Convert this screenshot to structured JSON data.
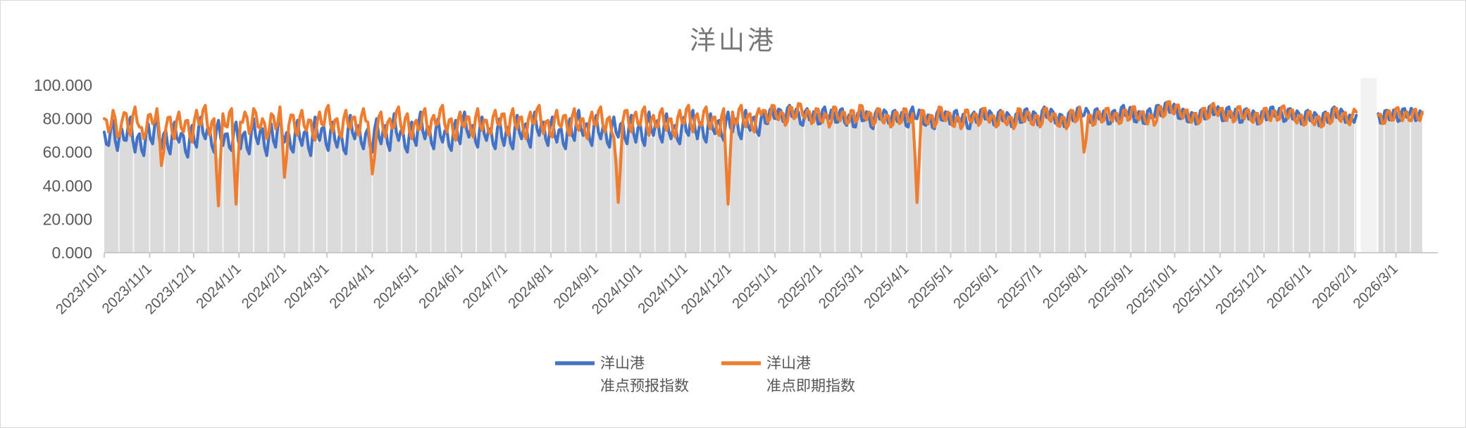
{
  "chart_data": {
    "type": "line",
    "title": "洋山港",
    "legend": [
      {
        "line1": "洋山港",
        "line2": "准点预报指数",
        "color": "#4472C4"
      },
      {
        "line1": "洋山港",
        "line2": "准点即期指数",
        "color": "#ED7D31"
      }
    ],
    "x_start_date": "2023/10/1",
    "x_end_date": "2026/3/20",
    "x_total_days": 902,
    "sample_day_step": 3,
    "x_tick_labels": [
      "2023/10/1",
      "2023/11/1",
      "2023/12/1",
      "2024/1/1",
      "2024/2/1",
      "2024/3/1",
      "2024/4/1",
      "2024/5/1",
      "2024/6/1",
      "2024/7/1",
      "2024/8/1",
      "2024/9/1",
      "2024/10/1",
      "2024/11/1",
      "2024/12/1",
      "2025/1/1",
      "2025/2/1",
      "2025/3/1",
      "2025/4/1",
      "2025/5/1",
      "2025/6/1",
      "2025/7/1",
      "2025/8/1",
      "2025/9/1",
      "2025/10/1",
      "2025/11/1",
      "2025/12/1",
      "2026/1/1",
      "2026/2/1",
      "2026/3/1"
    ],
    "x_tick_days": [
      0,
      31,
      61,
      92,
      123,
      152,
      183,
      213,
      244,
      274,
      305,
      336,
      366,
      397,
      427,
      458,
      489,
      517,
      548,
      578,
      609,
      639,
      670,
      701,
      731,
      762,
      792,
      823,
      854,
      882
    ],
    "ylim": [
      0,
      100
    ],
    "y_tick_values": [
      0,
      20,
      40,
      60,
      80,
      100
    ],
    "y_ticks": [
      "0.000",
      "20.000",
      "40.000",
      "60.000",
      "80.000",
      "100.000"
    ],
    "grid": "vertical-white-stripes-on-gray-area",
    "legend_position": "bottom-center",
    "data_gap": {
      "start_day": 858,
      "end_day": 869,
      "note": "blank band, no data (around 2026/2/5-2/15)"
    },
    "midpoint_jitter": 3.2,
    "area_fill": {
      "color": "#DBDBDB",
      "min_top": 56,
      "description": "gray fill from 0 up to lower envelope of the two lines"
    },
    "colors": {
      "title": "#767676",
      "axis_labels": "#595959",
      "axis_line": "#BFBFBF",
      "tick": "#BFBFBF",
      "stripe_white": "#F5F5F5",
      "gap_column": "#F2F2F2",
      "legend_text": "#555555",
      "series_blue": "#4472C4",
      "series_orange": "#ED7D31"
    },
    "series": [
      {
        "name": "洋山港 准点预报指数",
        "color": "#4472C4",
        "values": [
          72,
          64,
          79,
          61,
          74,
          67,
          81,
          60,
          71,
          58,
          77,
          65,
          82,
          62,
          73,
          59,
          78,
          66,
          70,
          57,
          76,
          63,
          81,
          68,
          74,
          60,
          79,
          64,
          71,
          61,
          78,
          62,
          72,
          59,
          80,
          65,
          74,
          58,
          77,
          63,
          82,
          66,
          71,
          60,
          79,
          64,
          73,
          58,
          81,
          67,
          75,
          61,
          78,
          63,
          70,
          59,
          82,
          68,
          76,
          62,
          74,
          60,
          80,
          65,
          76,
          61,
          83,
          67,
          72,
          60,
          78,
          64,
          84,
          68,
          75,
          62,
          80,
          66,
          73,
          61,
          79,
          65,
          84,
          69,
          76,
          63,
          81,
          67,
          74,
          62,
          80,
          64,
          75,
          62,
          82,
          68,
          77,
          63,
          84,
          70,
          78,
          64,
          81,
          66,
          74,
          62,
          80,
          67,
          85,
          70,
          77,
          64,
          82,
          68,
          75,
          63,
          81,
          69,
          78,
          65,
          82,
          66,
          77,
          64,
          84,
          70,
          79,
          66,
          83,
          68,
          76,
          65,
          81,
          70,
          85,
          68,
          78,
          66,
          83,
          71,
          79,
          67,
          84,
          72,
          80,
          68,
          85,
          73,
          81,
          70,
          84,
          77,
          87,
          80,
          85,
          78,
          88,
          81,
          84,
          76,
          86,
          79,
          83,
          77,
          87,
          80,
          84,
          78,
          86,
          76,
          82,
          75,
          85,
          79,
          83,
          74,
          86,
          80,
          84,
          77,
          85,
          78,
          83,
          75,
          87,
          80,
          84,
          76,
          82,
          74,
          86,
          79,
          83,
          77,
          85,
          78,
          81,
          74,
          84,
          78,
          86,
          80,
          83,
          76,
          85,
          79,
          82,
          75,
          84,
          78,
          86,
          79,
          83,
          76,
          87,
          81,
          84,
          77,
          82,
          75,
          85,
          79,
          87,
          82,
          84,
          78,
          86,
          80,
          83,
          77,
          85,
          79,
          88,
          82,
          85,
          78,
          84,
          77,
          86,
          81,
          88,
          82,
          90,
          84,
          87,
          80,
          85,
          78,
          83,
          77,
          86,
          80,
          88,
          83,
          85,
          79,
          87,
          81,
          84,
          78,
          86,
          80,
          83,
          77,
          85,
          80,
          87,
          82,
          84,
          79,
          86,
          80,
          83,
          77,
          85,
          79,
          82,
          76,
          84,
          78,
          87,
          81,
          84,
          78,
          80,
          82,
          null,
          null,
          null,
          null,
          83,
          78,
          85,
          80,
          84,
          79,
          86,
          82,
          84,
          80,
          83
        ]
      },
      {
        "name": "洋山港 准点即期指数",
        "color": "#ED7D31",
        "values": [
          80,
          72,
          85,
          69,
          78,
          83,
          70,
          87,
          75,
          68,
          82,
          77,
          86,
          52,
          74,
          81,
          68,
          84,
          72,
          79,
          66,
          85,
          76,
          88,
          70,
          80,
          28,
          83,
          75,
          86,
          29,
          78,
          84,
          71,
          86,
          75,
          80,
          68,
          83,
          74,
          87,
          45,
          76,
          82,
          70,
          85,
          73,
          79,
          67,
          84,
          76,
          88,
          72,
          80,
          69,
          85,
          74,
          81,
          70,
          86,
          78,
          47,
          72,
          84,
          69,
          80,
          75,
          87,
          71,
          83,
          68,
          79,
          74,
          86,
          70,
          82,
          77,
          88,
          72,
          80,
          67,
          84,
          75,
          81,
          69,
          86,
          73,
          79,
          71,
          85,
          76,
          83,
          70,
          86,
          74,
          81,
          68,
          84,
          77,
          88,
          71,
          79,
          69,
          85,
          75,
          82,
          70,
          86,
          73,
          80,
          68,
          84,
          76,
          87,
          72,
          81,
          69,
          30,
          78,
          85,
          72,
          84,
          76,
          87,
          70,
          82,
          75,
          86,
          73,
          80,
          69,
          85,
          77,
          88,
          72,
          83,
          76,
          87,
          74,
          81,
          70,
          86,
          29,
          84,
          77,
          88,
          75,
          83,
          72,
          86,
          85,
          78,
          88,
          81,
          84,
          76,
          87,
          80,
          89,
          82,
          85,
          77,
          86,
          79,
          83,
          75,
          87,
          80,
          84,
          77,
          85,
          78,
          88,
          81,
          84,
          76,
          86,
          79,
          82,
          75,
          84,
          77,
          86,
          79,
          83,
          30,
          85,
          78,
          82,
          75,
          87,
          80,
          84,
          76,
          81,
          74,
          85,
          79,
          83,
          76,
          86,
          80,
          82,
          75,
          84,
          78,
          81,
          74,
          86,
          79,
          84,
          77,
          82,
          75,
          86,
          80,
          83,
          76,
          81,
          74,
          85,
          78,
          87,
          60,
          82,
          76,
          84,
          78,
          86,
          80,
          83,
          77,
          85,
          79,
          87,
          81,
          84,
          78,
          82,
          76,
          87,
          81,
          90,
          84,
          88,
          82,
          85,
          79,
          83,
          77,
          86,
          80,
          88,
          84,
          86,
          80,
          84,
          78,
          87,
          81,
          85,
          79,
          83,
          77,
          86,
          80,
          84,
          79,
          87,
          82,
          85,
          79,
          82,
          76,
          84,
          78,
          81,
          75,
          83,
          77,
          86,
          80,
          83,
          78,
          81,
          84,
          null,
          null,
          null,
          null,
          82,
          77,
          84,
          79,
          86,
          81,
          83,
          79,
          85,
          80,
          84
        ]
      }
    ]
  }
}
